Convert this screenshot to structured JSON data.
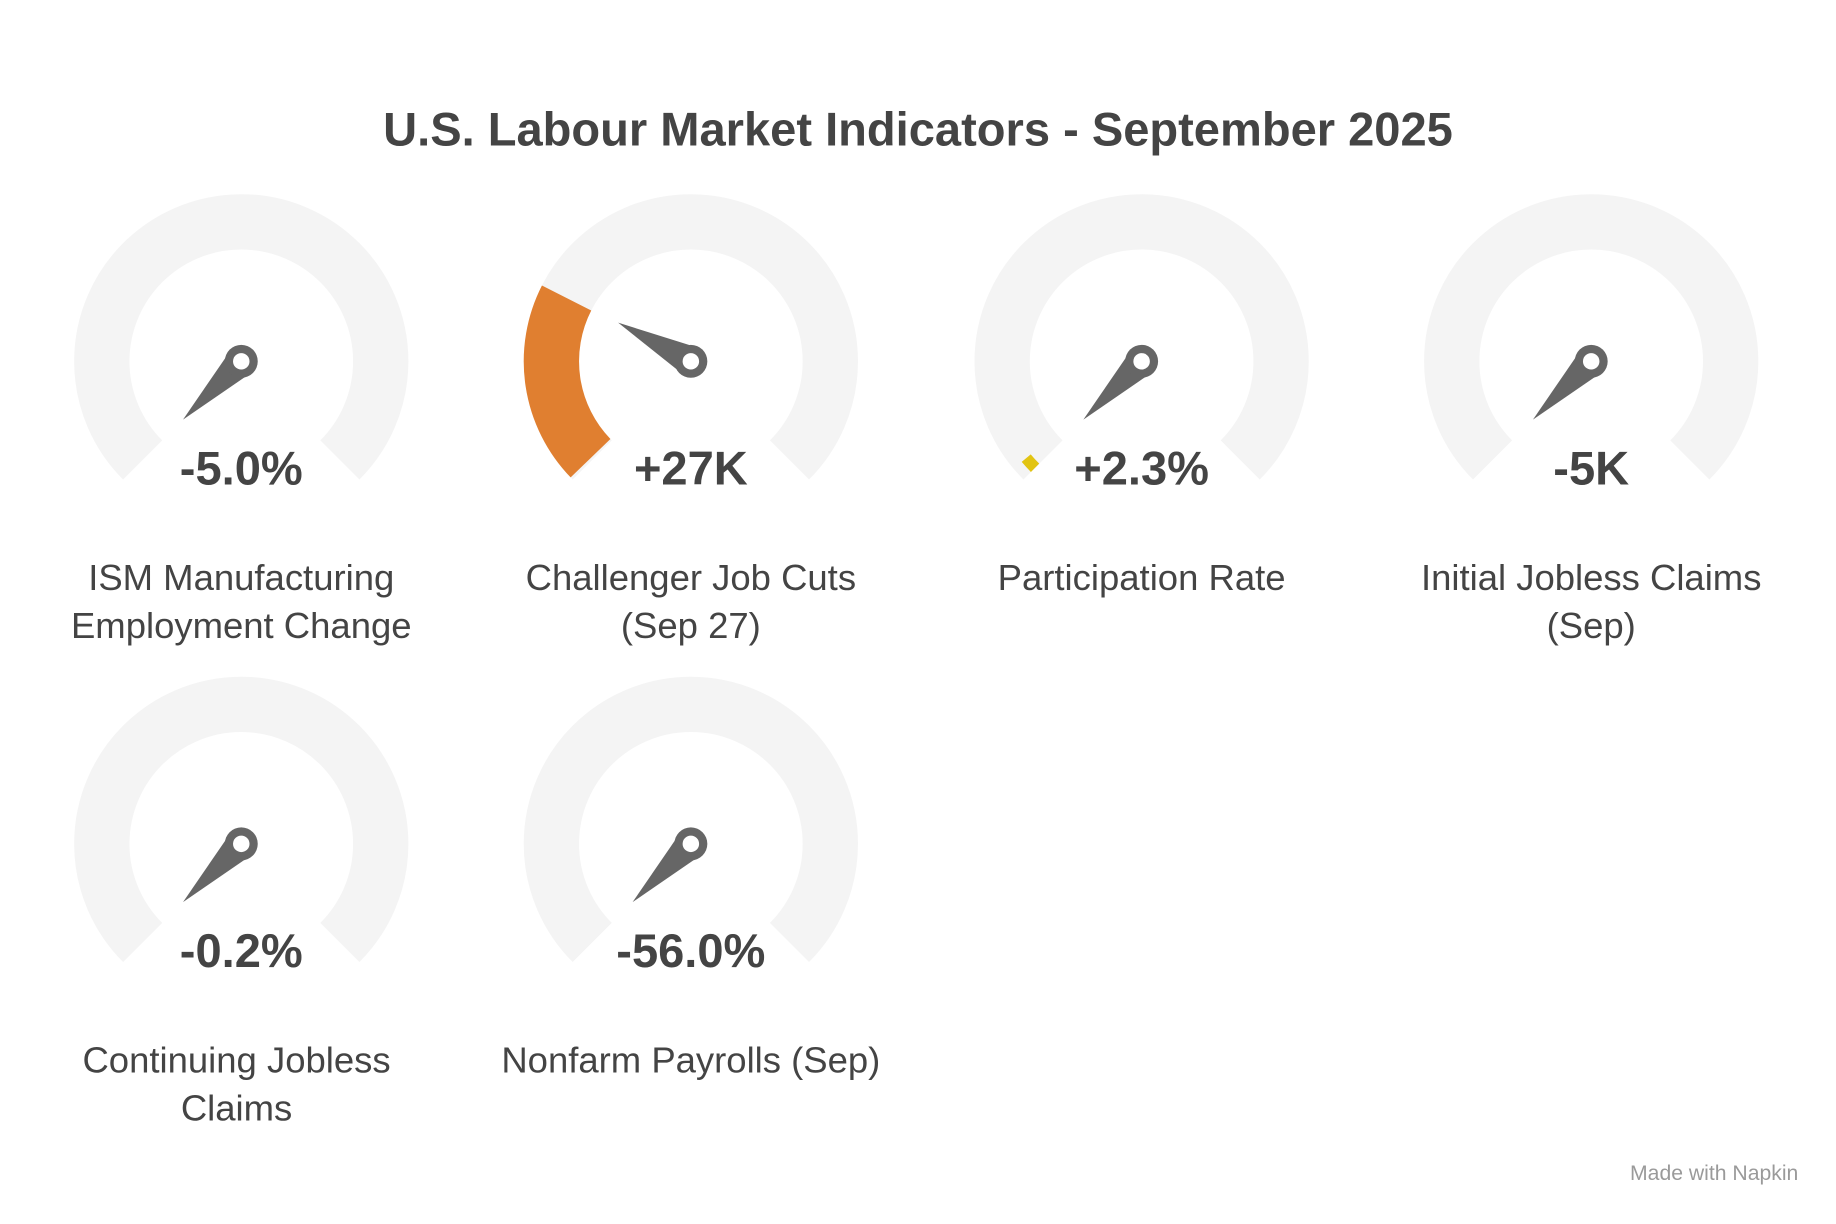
{
  "title": "U.S. Labour Market Indicators - September 2025",
  "gauges": [
    {
      "value": "-5.0%",
      "label": [
        "ISM Manufacturing",
        "Employment Change"
      ]
    },
    {
      "value": "+27K",
      "label": [
        "Challenger Job Cuts",
        "(Sep 27)"
      ]
    },
    {
      "value": "+2.3%",
      "label": [
        "Participation Rate"
      ]
    },
    {
      "value": "-5K",
      "label": [
        "Initial Jobless Claims",
        "(Sep)"
      ]
    },
    {
      "value": "-0.2%",
      "label": [
        "Continuing Jobless",
        "Claims"
      ]
    },
    {
      "value": "-56.0%",
      "label": [
        "Nonfarm Payrolls (Sep)"
      ]
    }
  ],
  "footer": "Made with Napkin"
}
